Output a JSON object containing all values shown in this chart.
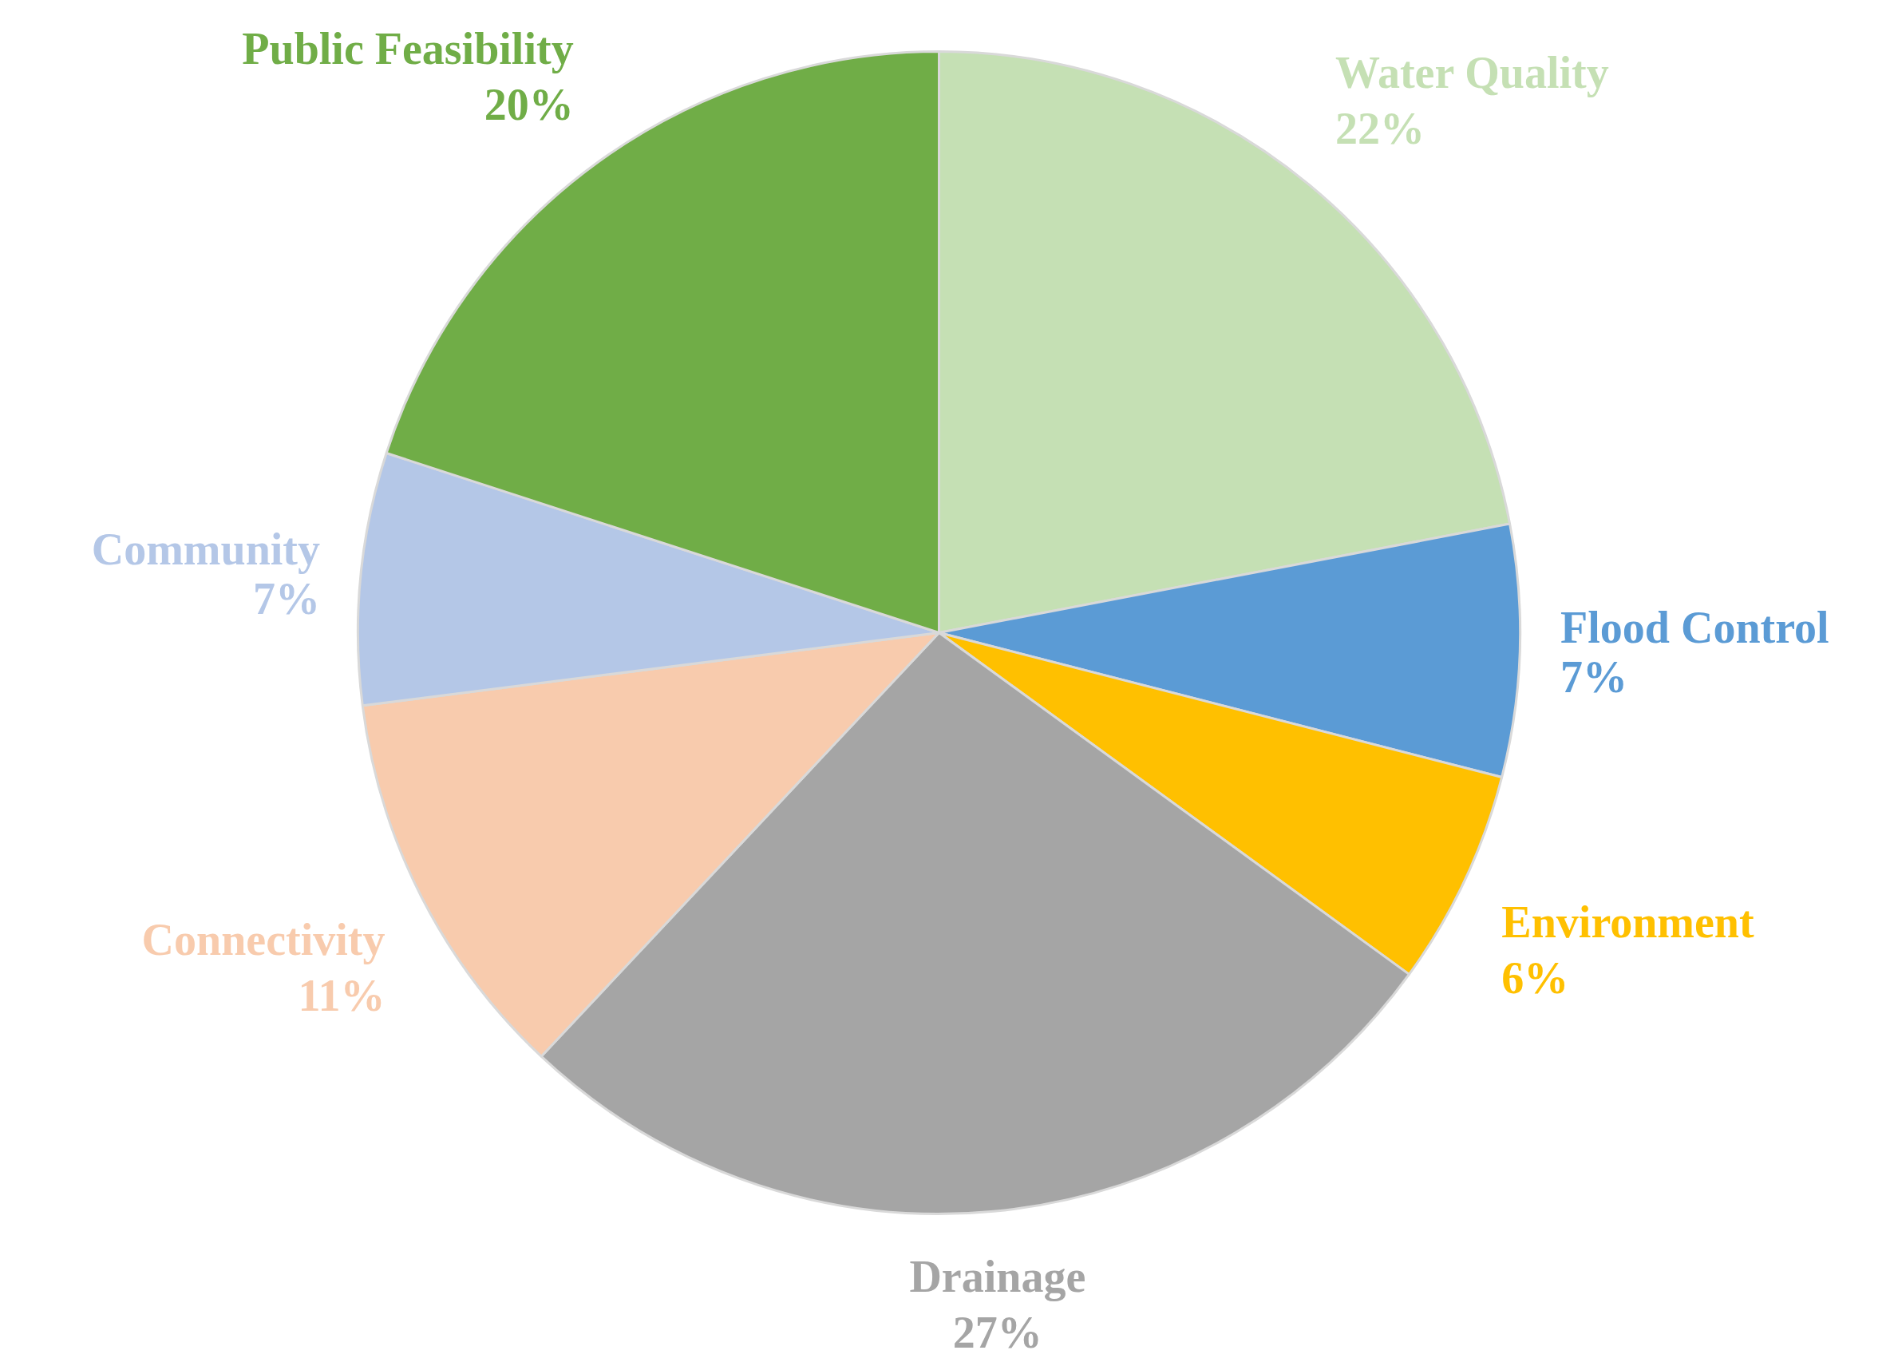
{
  "chart_data": {
    "type": "pie",
    "categories": [
      "Water Quality",
      "Flood Control",
      "Environment",
      "Drainage",
      "Connectivity",
      "Community",
      "Public Feasibility"
    ],
    "values": [
      22,
      7,
      6,
      27,
      11,
      7,
      20
    ],
    "colors": [
      "#c5e0b4",
      "#5b9bd5",
      "#ffc000",
      "#a5a5a5",
      "#f8cbad",
      "#b4c7e7",
      "#70ad47"
    ],
    "value_labels": [
      "22%",
      "7%",
      "6%",
      "27%",
      "11%",
      "7%",
      "20%"
    ]
  }
}
